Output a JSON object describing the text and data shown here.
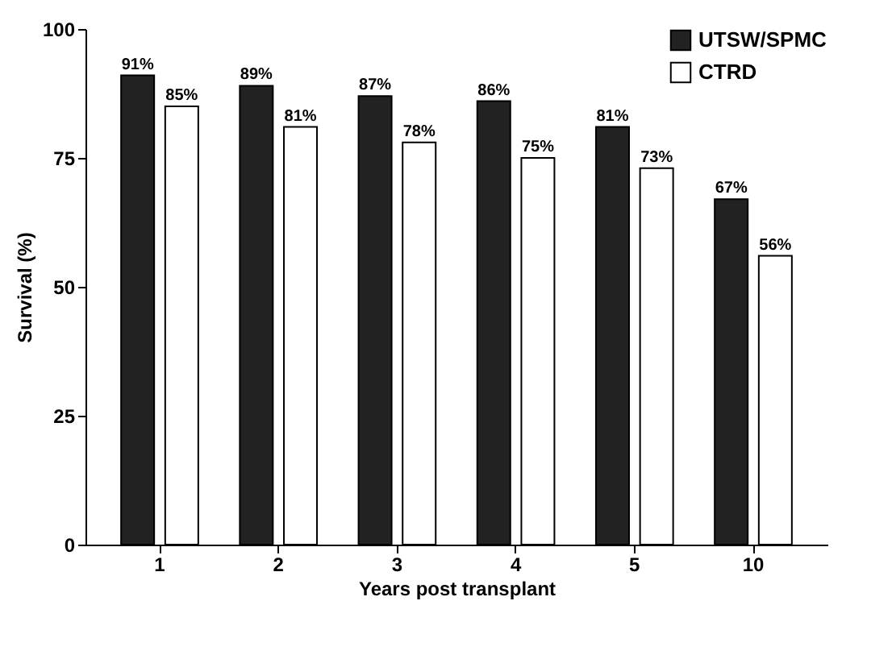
{
  "chart_data": {
    "type": "bar",
    "xlabel": "Years post transplant",
    "ylabel": "Survival (%)",
    "categories": [
      "1",
      "2",
      "3",
      "4",
      "5",
      "10"
    ],
    "series": [
      {
        "name": "UTSW/SPMC",
        "color": "#222222",
        "values": [
          91,
          89,
          87,
          86,
          81,
          67
        ],
        "value_labels": [
          "91%",
          "89%",
          "87%",
          "86%",
          "81%",
          "67%"
        ]
      },
      {
        "name": "CTRD",
        "color": "#ffffff",
        "values": [
          85,
          81,
          78,
          75,
          73,
          56
        ],
        "value_labels": [
          "85%",
          "81%",
          "78%",
          "75%",
          "73%",
          "56%"
        ]
      }
    ],
    "ylim": [
      0,
      100
    ],
    "yticks": [
      0,
      25,
      50,
      75,
      100
    ],
    "grid": false,
    "legend": "top right"
  }
}
